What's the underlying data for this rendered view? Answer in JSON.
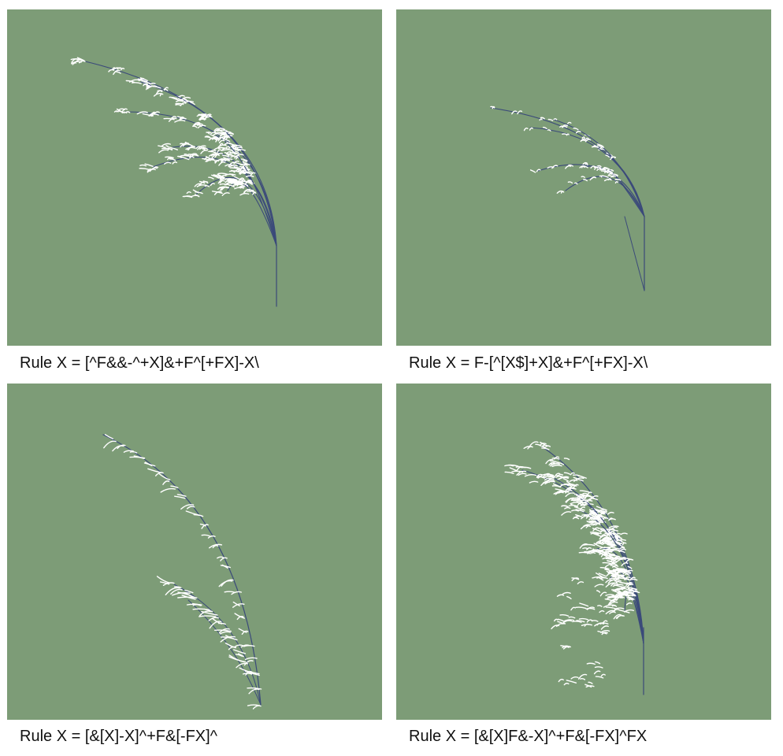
{
  "colors": {
    "panel_background": "#7d9c77",
    "stem": "#3b4a7a",
    "tuft": "#ffffff",
    "caption_text": "#111111"
  },
  "panels": [
    {
      "caption": "Rule X = [^F&&-^+X]&+F^[+FX]-X\\",
      "description_icon": "grass-plant-dense"
    },
    {
      "caption": "Rule X = F-[^[X$]+X]&+F^[+FX]-X\\",
      "description_icon": "grass-plant-sparse"
    },
    {
      "caption": "Rule X = [&[X]-X]^+F&[-FX]^",
      "description_icon": "grass-plant-single-arc"
    },
    {
      "caption": "Rule X = [&[X]F&-X]^+F&[-FX]^FX",
      "description_icon": "grass-plant-bushy"
    }
  ]
}
